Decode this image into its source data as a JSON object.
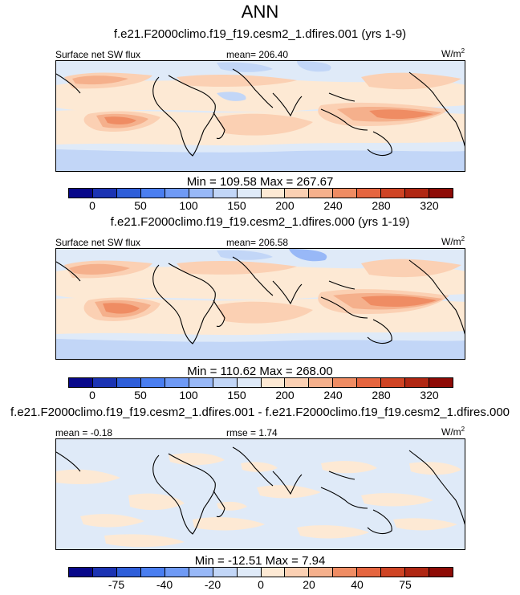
{
  "title": "ANN",
  "panels": [
    {
      "case_title": "f.e21.F2000climo.f19_f19.cesm2_1.dfires.001 (yrs 1-9)",
      "left_label": "Surface net SW flux",
      "center_label": "mean= 206.40",
      "units": "W/m",
      "units_sup": "2",
      "minmax": "Min = 109.58 Max = 267.67",
      "colorbar_ticks": [
        "0",
        "50",
        "100",
        "150",
        "200",
        "240",
        "280",
        "320"
      ]
    },
    {
      "case_title": "f.e21.F2000climo.f19_f19.cesm2_1.dfires.000 (yrs 1-19)",
      "left_label": "Surface net SW flux",
      "center_label": "mean= 206.58",
      "units": "W/m",
      "units_sup": "2",
      "minmax": "Min = 110.62 Max = 268.00",
      "colorbar_ticks": [
        "0",
        "50",
        "100",
        "150",
        "200",
        "240",
        "280",
        "320"
      ]
    },
    {
      "case_title": "f.e21.F2000climo.f19_f19.cesm2_1.dfires.001 - f.e21.F2000climo.f19_f19.cesm2_1.dfires.000",
      "left_label": "mean =  -0.18",
      "center_label": "rmse =   1.74",
      "units": "W/m",
      "units_sup": "2",
      "minmax": "Min = -12.51 Max =   7.94",
      "colorbar_ticks": [
        "-75",
        "-40",
        "-20",
        "0",
        "20",
        "40",
        "75"
      ]
    }
  ],
  "colors": {
    "colorbar": [
      "#08088a",
      "#1b33b3",
      "#2e5ed9",
      "#4a7ef0",
      "#6f9af5",
      "#98b8f7",
      "#c2d6f7",
      "#dfeaf8",
      "#fde9d4",
      "#fbd0b3",
      "#f5b08c",
      "#ef8c63",
      "#e5653f",
      "#cf4424",
      "#b02713",
      "#8e0b06"
    ],
    "ocean_light": "#dfeaf8",
    "warm_light": "#fde9d4",
    "warm_mid": "#fbd0b3",
    "warm_strong": "#f5b08c",
    "warm_hot": "#ef8c63",
    "cool_mid": "#c2d6f7",
    "cool_dark": "#98b8f7"
  }
}
